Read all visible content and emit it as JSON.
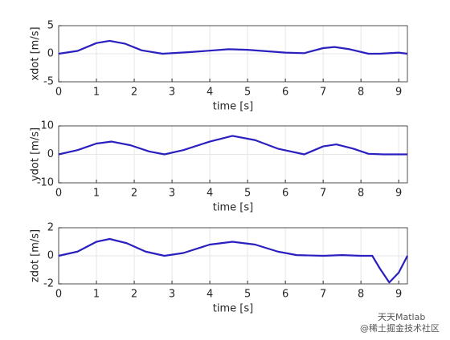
{
  "chart_data": [
    {
      "type": "line",
      "xlabel": "time [s]",
      "ylabel": "xdot [m/s]",
      "xlim": [
        0,
        9.23
      ],
      "ylim": [
        -5,
        5
      ],
      "xticks": [
        0,
        1,
        2,
        3,
        4,
        5,
        6,
        7,
        8,
        9
      ],
      "yticks": [
        -5,
        0,
        5
      ],
      "grid": true,
      "series": [
        {
          "color": "#2a1fbf",
          "x": [
            0,
            0.5,
            1,
            1.35,
            1.75,
            2.2,
            2.75,
            3.5,
            4.5,
            5,
            6,
            6.5,
            7,
            7.3,
            7.7,
            8.2,
            8.5,
            9,
            9.23
          ],
          "values": [
            0,
            0.5,
            1.9,
            2.3,
            1.8,
            0.6,
            0,
            0.3,
            0.8,
            0.7,
            0.2,
            0.1,
            1,
            1.2,
            0.8,
            0,
            0,
            0.2,
            0
          ]
        }
      ]
    },
    {
      "type": "line",
      "xlabel": "time [s]",
      "ylabel": "ydot [m/s]",
      "xlim": [
        0,
        9.23
      ],
      "ylim": [
        -10,
        10
      ],
      "xticks": [
        0,
        1,
        2,
        3,
        4,
        5,
        6,
        7,
        8,
        9
      ],
      "yticks": [
        -10,
        0,
        10
      ],
      "grid": true,
      "series": [
        {
          "color": "#2a1fbf",
          "x": [
            0,
            0.5,
            1,
            1.4,
            1.9,
            2.4,
            2.8,
            3.3,
            4,
            4.6,
            5.2,
            5.8,
            6.5,
            7,
            7.35,
            7.8,
            8.2,
            8.6,
            9.23
          ],
          "values": [
            0,
            1.5,
            3.8,
            4.5,
            3.2,
            1,
            0,
            1.5,
            4.5,
            6.5,
            5,
            2,
            0,
            2.8,
            3.5,
            2,
            0.2,
            0,
            0
          ]
        }
      ]
    },
    {
      "type": "line",
      "xlabel": "time [s]",
      "ylabel": "zdot [m/s]",
      "xlim": [
        0,
        9.23
      ],
      "ylim": [
        -2,
        2
      ],
      "xticks": [
        0,
        1,
        2,
        3,
        4,
        5,
        6,
        7,
        8,
        9
      ],
      "yticks": [
        -2,
        0,
        2
      ],
      "grid": true,
      "series": [
        {
          "color": "#2a1fbf",
          "x": [
            0,
            0.5,
            1,
            1.35,
            1.8,
            2.3,
            2.8,
            3.3,
            4,
            4.6,
            5.2,
            5.8,
            6.3,
            7,
            7.5,
            8,
            8.3,
            8.5,
            8.75,
            9,
            9.23
          ],
          "values": [
            0,
            0.3,
            1,
            1.2,
            0.9,
            0.3,
            0,
            0.2,
            0.8,
            1,
            0.8,
            0.3,
            0.05,
            0,
            0.05,
            0,
            0,
            -0.9,
            -1.9,
            -1.2,
            0
          ]
        }
      ]
    }
  ],
  "watermark": {
    "line1": "天天Matlab",
    "line2": "@稀土掘金技术社区"
  }
}
